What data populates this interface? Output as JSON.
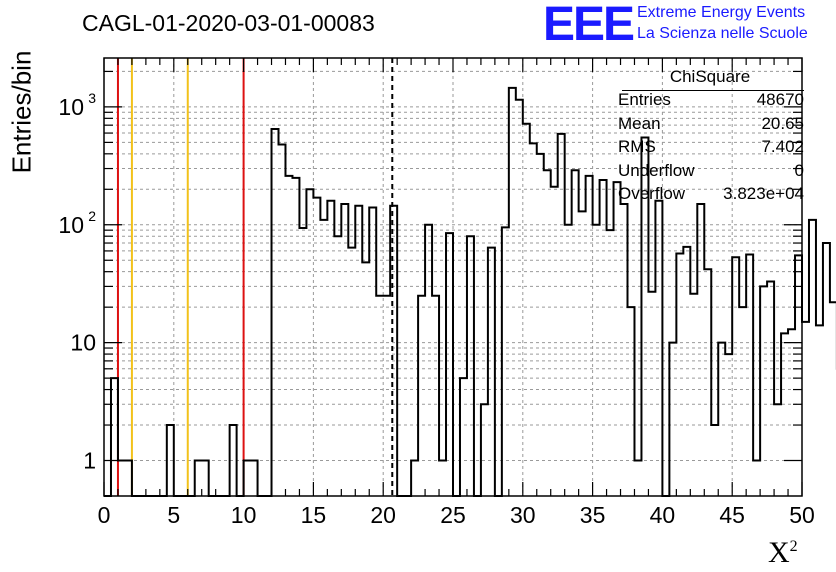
{
  "title": "CAGL-01-2020-03-01-00083",
  "branding": {
    "logo_text": "EEE",
    "line1": "Extreme Energy Events",
    "line2": "La Scienza nelle Scuole",
    "color": "#1a1aff"
  },
  "stats_box": {
    "title": "ChiSquare",
    "rows": [
      {
        "label": "Entries",
        "value": "48670"
      },
      {
        "label": "Mean",
        "value": "20.65"
      },
      {
        "label": "RMS",
        "value": "7.402"
      },
      {
        "label": "Underflow",
        "value": "0"
      },
      {
        "label": "Overflow",
        "value": "3.823e+04"
      }
    ]
  },
  "chart_data": {
    "type": "histogram",
    "xlabel": "X",
    "xlabel_superscript": "2",
    "ylabel": "Entries/bin",
    "xlim": [
      0,
      50
    ],
    "ylim": [
      0.5,
      2600
    ],
    "y_scale": "log",
    "grid": true,
    "bin_width": 0.5,
    "x_ticks": [
      "0",
      "5",
      "10",
      "15",
      "20",
      "25",
      "30",
      "35",
      "40",
      "45",
      "50"
    ],
    "y_ticks": [
      {
        "value": 1,
        "label": "1"
      },
      {
        "value": 10,
        "label": "10"
      },
      {
        "value": 100,
        "label": "10",
        "exp": "2"
      },
      {
        "value": 1000,
        "label": "10",
        "exp": "3"
      }
    ],
    "counts": [
      0,
      5,
      1,
      1,
      0,
      0,
      0,
      0,
      0,
      2,
      0,
      0,
      0,
      1,
      1,
      0,
      0,
      0,
      2,
      0,
      1,
      1,
      0,
      0,
      650,
      480,
      260,
      250,
      94,
      200,
      170,
      110,
      160,
      80,
      150,
      64,
      145,
      48,
      140,
      25,
      25,
      145,
      0,
      0,
      1,
      25,
      100,
      25,
      1,
      85,
      0,
      5,
      80,
      0,
      3,
      64,
      0,
      95,
      1450,
      1150,
      720,
      490,
      400,
      290,
      210,
      590,
      100,
      290,
      130,
      260,
      100,
      240,
      90,
      230,
      150,
      20,
      1,
      550,
      27,
      160,
      0,
      10,
      57,
      65,
      26,
      150,
      42,
      2,
      10,
      8,
      53,
      20,
      56,
      1,
      30,
      33,
      3,
      12,
      13,
      55,
      15,
      110,
      14,
      70,
      22,
      6,
      25,
      33,
      12,
      9,
      9,
      15,
      0,
      13,
      18,
      45,
      40,
      18,
      0,
      4,
      21,
      2,
      1,
      0,
      11,
      0,
      2,
      0,
      0,
      0,
      0,
      2,
      1,
      0,
      0,
      0,
      0,
      0,
      0,
      0,
      20,
      0,
      1,
      14,
      3,
      1,
      30,
      20,
      9,
      10,
      15,
      0,
      3,
      7,
      8,
      0,
      0,
      0,
      0,
      5,
      5,
      0,
      0,
      0,
      0,
      0,
      0,
      0,
      0,
      0,
      0,
      0,
      0,
      0,
      0,
      0,
      0,
      0,
      15,
      0,
      5,
      8,
      6,
      2,
      6,
      0,
      8,
      0,
      0,
      0,
      0,
      0,
      1,
      0,
      0,
      0,
      0,
      0,
      0,
      8,
      0,
      0,
      0,
      0,
      0,
      0,
      0,
      0,
      1,
      0,
      0,
      0,
      0,
      0,
      0,
      0,
      0,
      0,
      0,
      0,
      0,
      0,
      7,
      5,
      7,
      0,
      0,
      0,
      0,
      0
    ],
    "vlines": [
      {
        "x": 1,
        "color": "#dd1111",
        "style": "solid"
      },
      {
        "x": 2,
        "color": "#f2c21a",
        "style": "solid"
      },
      {
        "x": 6,
        "color": "#f2c21a",
        "style": "solid"
      },
      {
        "x": 10,
        "color": "#dd1111",
        "style": "solid"
      },
      {
        "x": 20.65,
        "color": "#000000",
        "style": "dashed"
      }
    ]
  }
}
